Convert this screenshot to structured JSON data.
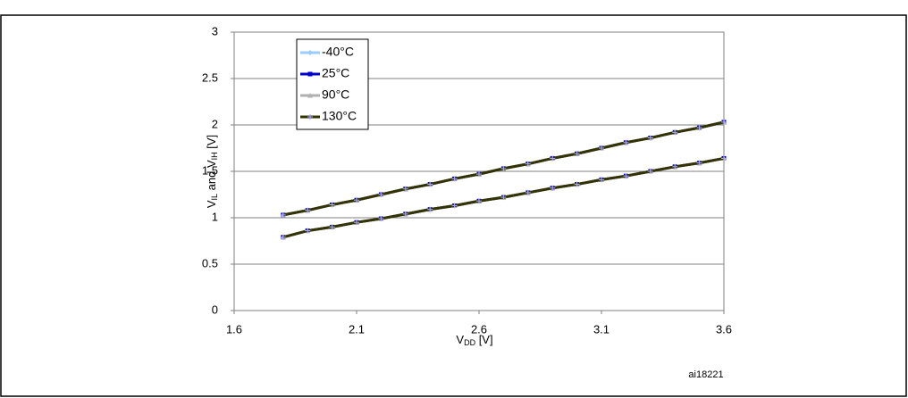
{
  "chart_data": {
    "type": "line",
    "xlabel": [
      "V",
      "DD",
      " [V]"
    ],
    "ylabel": [
      "V",
      "IL",
      " and V",
      "IH",
      " [V]"
    ],
    "watermark": "ai18221",
    "x": [
      1.8,
      1.9,
      2.0,
      2.1,
      2.2,
      2.3,
      2.4,
      2.5,
      2.6,
      2.7,
      2.8,
      2.9,
      3.0,
      3.1,
      3.2,
      3.3,
      3.4,
      3.5,
      3.6
    ],
    "series": [
      {
        "name": "-40°C",
        "color": "#99ccff",
        "marker": "diamond",
        "vih": [
          1.03,
          1.08,
          1.14,
          1.19,
          1.25,
          1.31,
          1.36,
          1.42,
          1.47,
          1.53,
          1.58,
          1.64,
          1.69,
          1.75,
          1.81,
          1.86,
          1.92,
          1.97,
          2.03
        ],
        "vil": [
          0.79,
          0.86,
          0.9,
          0.95,
          0.99,
          1.04,
          1.09,
          1.13,
          1.18,
          1.22,
          1.27,
          1.32,
          1.36,
          1.41,
          1.45,
          1.5,
          1.55,
          1.59,
          1.64
        ]
      },
      {
        "name": "25°C",
        "color": "#0000cc",
        "marker": "square",
        "vih": [
          1.03,
          1.08,
          1.14,
          1.19,
          1.25,
          1.31,
          1.36,
          1.42,
          1.47,
          1.53,
          1.58,
          1.64,
          1.69,
          1.75,
          1.81,
          1.86,
          1.92,
          1.97,
          2.03
        ],
        "vil": [
          0.79,
          0.86,
          0.9,
          0.95,
          0.99,
          1.04,
          1.09,
          1.13,
          1.18,
          1.22,
          1.27,
          1.32,
          1.36,
          1.41,
          1.45,
          1.5,
          1.55,
          1.59,
          1.64
        ]
      },
      {
        "name": "90°C",
        "color": "#b0b0b0",
        "marker": "triangle",
        "vih": [
          1.03,
          1.08,
          1.14,
          1.19,
          1.25,
          1.31,
          1.36,
          1.42,
          1.47,
          1.53,
          1.58,
          1.64,
          1.69,
          1.75,
          1.81,
          1.86,
          1.92,
          1.97,
          2.03
        ],
        "vil": [
          0.79,
          0.86,
          0.9,
          0.95,
          0.99,
          1.04,
          1.09,
          1.13,
          1.18,
          1.22,
          1.27,
          1.32,
          1.36,
          1.41,
          1.45,
          1.5,
          1.55,
          1.59,
          1.64
        ]
      },
      {
        "name": "130°C",
        "color": "#333300",
        "marker": "plus",
        "vih": [
          1.03,
          1.08,
          1.14,
          1.19,
          1.25,
          1.31,
          1.36,
          1.42,
          1.47,
          1.53,
          1.58,
          1.64,
          1.69,
          1.75,
          1.81,
          1.86,
          1.92,
          1.97,
          2.03
        ],
        "vil": [
          0.79,
          0.86,
          0.9,
          0.95,
          0.99,
          1.04,
          1.09,
          1.13,
          1.18,
          1.22,
          1.27,
          1.32,
          1.36,
          1.41,
          1.45,
          1.5,
          1.55,
          1.59,
          1.64
        ]
      }
    ],
    "xlim": [
      1.6,
      3.6
    ],
    "xticks": [
      1.6,
      2.1,
      2.6,
      3.1,
      3.6
    ],
    "ylim": [
      0,
      3
    ],
    "yticks": [
      0,
      0.5,
      1,
      1.5,
      2,
      2.5,
      3
    ],
    "grid": true,
    "legend": "top-left"
  }
}
